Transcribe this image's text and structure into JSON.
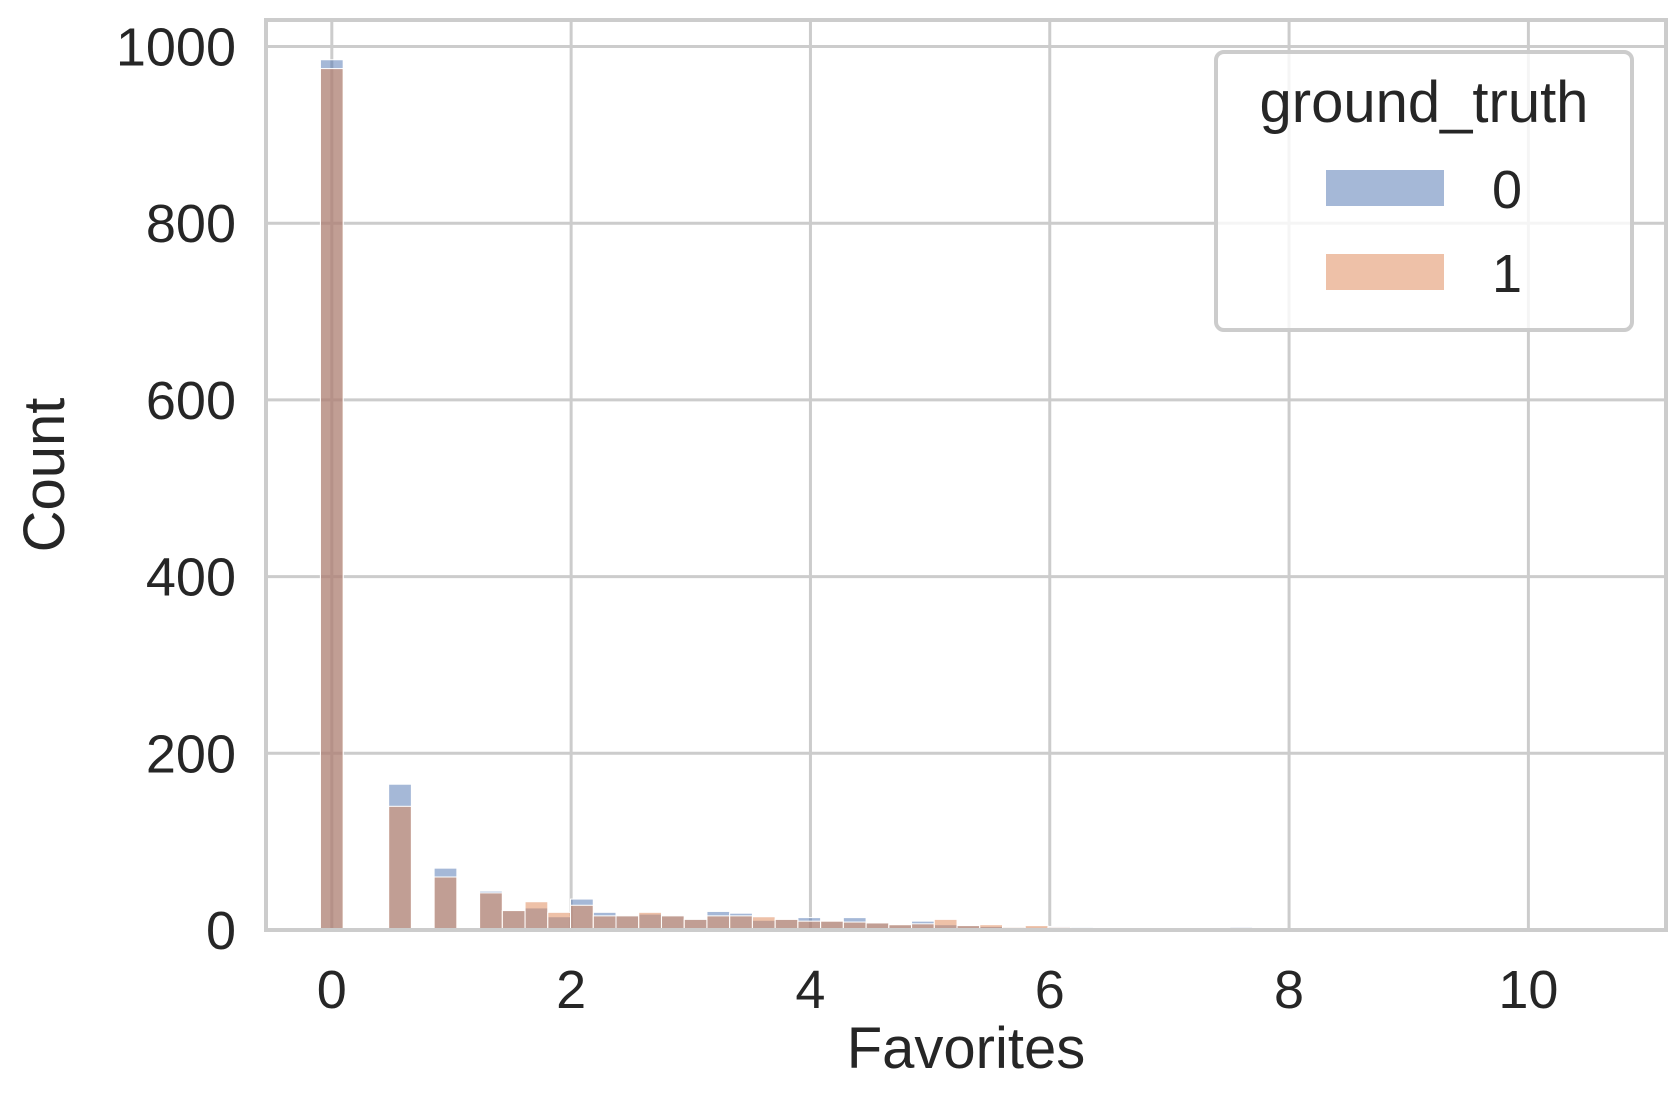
{
  "chart_data": {
    "type": "bar",
    "subtype": "overlaid-histogram",
    "xlabel": "Favorites",
    "ylabel": "Count",
    "xlim": [
      -0.55,
      11.15
    ],
    "ylim": [
      0,
      1030
    ],
    "xticks": [
      0,
      2,
      4,
      6,
      8,
      10
    ],
    "yticks": [
      0,
      200,
      400,
      600,
      800,
      1000
    ],
    "grid": true,
    "legend": {
      "title": "ground_truth",
      "placement": "top-right",
      "entries": [
        "0",
        "1"
      ]
    },
    "bin_width": 0.19,
    "series": [
      {
        "name": "0",
        "color": "#4c72b0",
        "bins": [
          {
            "x": 0.0,
            "count": 985
          },
          {
            "x": 0.57,
            "count": 165
          },
          {
            "x": 0.95,
            "count": 70
          },
          {
            "x": 1.33,
            "count": 44
          },
          {
            "x": 1.52,
            "count": 22
          },
          {
            "x": 1.71,
            "count": 25
          },
          {
            "x": 1.9,
            "count": 15
          },
          {
            "x": 2.09,
            "count": 35
          },
          {
            "x": 2.28,
            "count": 20
          },
          {
            "x": 2.47,
            "count": 17
          },
          {
            "x": 2.66,
            "count": 18
          },
          {
            "x": 2.85,
            "count": 17
          },
          {
            "x": 3.04,
            "count": 13
          },
          {
            "x": 3.23,
            "count": 21
          },
          {
            "x": 3.42,
            "count": 19
          },
          {
            "x": 3.61,
            "count": 11
          },
          {
            "x": 3.8,
            "count": 12
          },
          {
            "x": 3.99,
            "count": 14
          },
          {
            "x": 4.18,
            "count": 10
          },
          {
            "x": 4.37,
            "count": 14
          },
          {
            "x": 4.56,
            "count": 8
          },
          {
            "x": 4.75,
            "count": 6
          },
          {
            "x": 4.94,
            "count": 10
          },
          {
            "x": 5.13,
            "count": 6
          },
          {
            "x": 5.32,
            "count": 5
          },
          {
            "x": 5.51,
            "count": 4
          },
          {
            "x": 5.7,
            "count": 3
          },
          {
            "x": 5.89,
            "count": 3
          },
          {
            "x": 6.08,
            "count": 4
          },
          {
            "x": 6.27,
            "count": 3
          },
          {
            "x": 6.46,
            "count": 1
          },
          {
            "x": 6.65,
            "count": 1
          },
          {
            "x": 6.84,
            "count": 1
          },
          {
            "x": 7.03,
            "count": 1
          },
          {
            "x": 7.22,
            "count": 1
          },
          {
            "x": 7.6,
            "count": 3
          },
          {
            "x": 7.79,
            "count": 1
          }
        ]
      },
      {
        "name": "1",
        "color": "#dd8452",
        "bins": [
          {
            "x": 0.0,
            "count": 975
          },
          {
            "x": 0.57,
            "count": 140
          },
          {
            "x": 0.95,
            "count": 60
          },
          {
            "x": 1.33,
            "count": 42
          },
          {
            "x": 1.52,
            "count": 22
          },
          {
            "x": 1.71,
            "count": 32
          },
          {
            "x": 1.9,
            "count": 20
          },
          {
            "x": 2.09,
            "count": 28
          },
          {
            "x": 2.28,
            "count": 16
          },
          {
            "x": 2.47,
            "count": 16
          },
          {
            "x": 2.66,
            "count": 20
          },
          {
            "x": 2.85,
            "count": 16
          },
          {
            "x": 3.04,
            "count": 12
          },
          {
            "x": 3.23,
            "count": 16
          },
          {
            "x": 3.42,
            "count": 16
          },
          {
            "x": 3.61,
            "count": 15
          },
          {
            "x": 3.8,
            "count": 12
          },
          {
            "x": 3.99,
            "count": 10
          },
          {
            "x": 4.18,
            "count": 10
          },
          {
            "x": 4.37,
            "count": 9
          },
          {
            "x": 4.56,
            "count": 8
          },
          {
            "x": 4.75,
            "count": 6
          },
          {
            "x": 4.94,
            "count": 7
          },
          {
            "x": 5.13,
            "count": 12
          },
          {
            "x": 5.32,
            "count": 5
          },
          {
            "x": 5.51,
            "count": 6
          },
          {
            "x": 5.7,
            "count": 3
          },
          {
            "x": 5.89,
            "count": 5
          },
          {
            "x": 6.08,
            "count": 3
          },
          {
            "x": 6.27,
            "count": 2
          },
          {
            "x": 6.46,
            "count": 1
          },
          {
            "x": 6.65,
            "count": 1
          },
          {
            "x": 6.84,
            "count": 1
          },
          {
            "x": 7.03,
            "count": 1
          },
          {
            "x": 7.22,
            "count": 1
          },
          {
            "x": 7.6,
            "count": 1
          }
        ]
      }
    ]
  }
}
